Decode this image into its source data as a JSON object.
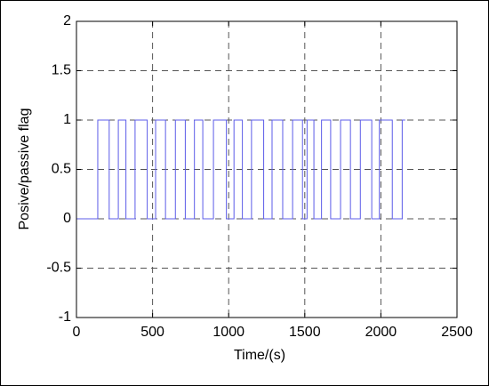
{
  "chart_data": {
    "type": "line",
    "xlabel": "Time/(s)",
    "ylabel": "Posive/passive flag",
    "x": [
      0,
      140,
      140,
      215,
      215,
      275,
      275,
      325,
      325,
      385,
      385,
      465,
      465,
      520,
      520,
      585,
      585,
      650,
      650,
      715,
      715,
      775,
      775,
      830,
      830,
      900,
      900,
      985,
      985,
      1035,
      1035,
      1090,
      1090,
      1150,
      1150,
      1230,
      1230,
      1285,
      1285,
      1355,
      1355,
      1420,
      1420,
      1485,
      1485,
      1515,
      1515,
      1560,
      1560,
      1610,
      1610,
      1670,
      1670,
      1735,
      1735,
      1800,
      1800,
      1865,
      1865,
      1940,
      1940,
      1990,
      1990,
      2075,
      2075,
      2140,
      2140,
      2160
    ],
    "values": [
      0,
      0,
      1,
      1,
      0,
      0,
      1,
      1,
      0,
      0,
      1,
      1,
      0,
      0,
      1,
      1,
      0,
      0,
      1,
      1,
      0,
      0,
      1,
      1,
      0,
      0,
      1,
      1,
      0,
      0,
      1,
      1,
      0,
      0,
      1,
      1,
      0,
      0,
      1,
      1,
      0,
      0,
      1,
      1,
      0,
      0,
      1,
      1,
      0,
      0,
      1,
      1,
      0,
      0,
      1,
      1,
      0,
      0,
      1,
      1,
      0,
      0,
      1,
      1,
      0,
      0,
      1,
      1
    ],
    "color": "#5c5ce8",
    "xlim": [
      0,
      2500
    ],
    "xticks": [
      0,
      500,
      1000,
      1500,
      2000,
      2500
    ],
    "ylim": [
      -1,
      2
    ],
    "yticks": [
      -1,
      -0.5,
      0,
      0.5,
      1,
      1.5,
      2
    ],
    "grid": true
  }
}
